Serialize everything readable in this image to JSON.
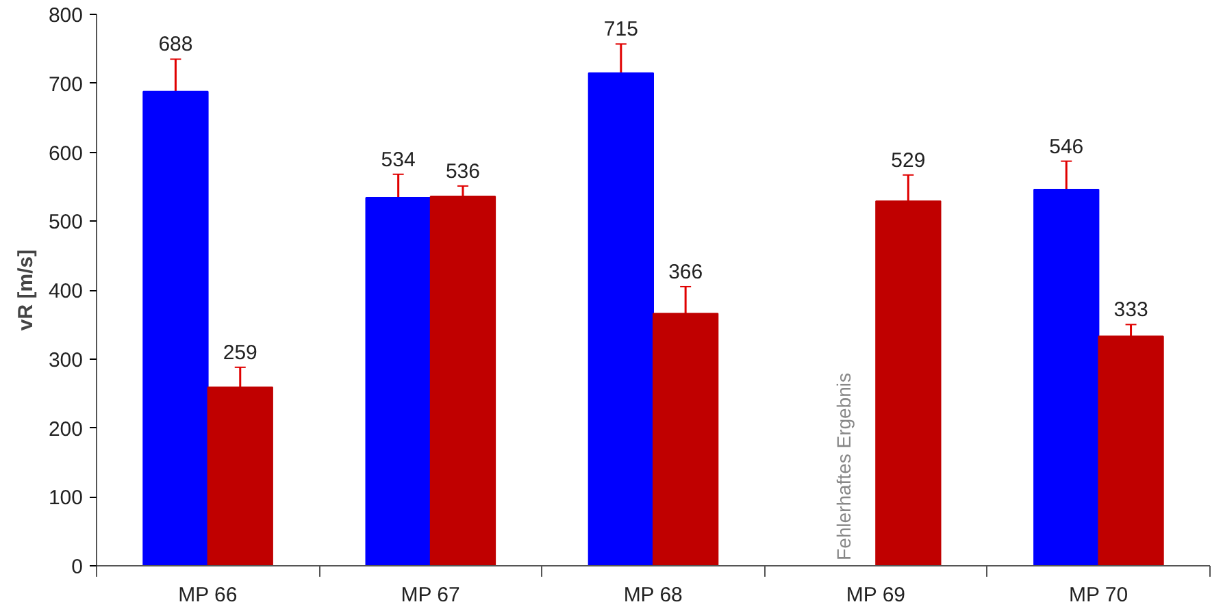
{
  "chart_data": {
    "type": "bar",
    "ylabel": "vR [m/s]",
    "categories": [
      "MP 66",
      "MP 67",
      "MP 68",
      "MP 69",
      "MP 70"
    ],
    "series": [
      {
        "color": "#0000ff",
        "values": [
          688,
          534,
          715,
          null,
          546
        ],
        "errors": [
          47,
          34,
          42,
          null,
          41
        ]
      },
      {
        "color": "#c00000",
        "values": [
          259,
          536,
          366,
          529,
          333
        ],
        "errors": [
          29,
          15,
          39,
          38,
          17
        ]
      }
    ],
    "ylim": [
      0,
      800
    ],
    "yticks": [
      0,
      100,
      200,
      300,
      400,
      500,
      600,
      700,
      800
    ],
    "grid": false,
    "data_labels": true,
    "annotations": [
      {
        "text": "Fehlerhaftes Ergebnis",
        "x": "MP 69",
        "y": 0
      }
    ]
  }
}
